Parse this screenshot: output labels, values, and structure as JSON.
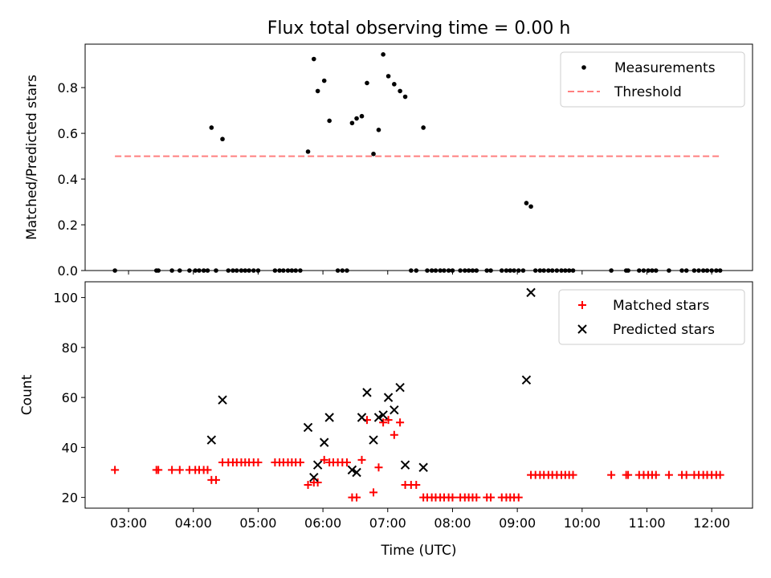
{
  "chart_data": [
    {
      "type": "scatter",
      "title": "Flux total observing time = 0.00 h",
      "xlabel": "",
      "ylabel": "Matched/Predicted stars",
      "xlim": [
        2.33,
        12.63
      ],
      "ylim": [
        0.0,
        0.99
      ],
      "xticks": [
        3,
        4,
        5,
        6,
        7,
        8,
        9,
        10,
        11,
        12
      ],
      "yticks": [
        0.0,
        0.2,
        0.4,
        0.6,
        0.8
      ],
      "ytick_labels": [
        "0.0",
        "0.2",
        "0.4",
        "0.6",
        "0.8"
      ],
      "legend_position": "top-right",
      "series": [
        {
          "name": "Measurements",
          "marker": "dot",
          "color": "#000000",
          "x": [
            2.79,
            3.43,
            3.46,
            3.67,
            3.79,
            3.94,
            4.03,
            4.09,
            4.16,
            4.22,
            4.28,
            4.35,
            4.45,
            4.54,
            4.61,
            4.67,
            4.74,
            4.8,
            4.86,
            4.93,
            5.0,
            5.26,
            5.33,
            5.39,
            5.46,
            5.52,
            5.58,
            5.65,
            5.77,
            5.86,
            5.92,
            6.02,
            6.1,
            6.23,
            6.3,
            6.37,
            6.45,
            6.52,
            6.6,
            6.68,
            6.78,
            6.86,
            6.93,
            7.01,
            7.1,
            7.19,
            7.27,
            7.36,
            7.44,
            7.55,
            7.61,
            7.68,
            7.74,
            7.81,
            7.87,
            7.94,
            8.0,
            8.12,
            8.19,
            8.25,
            8.31,
            8.37,
            8.53,
            8.59,
            8.76,
            8.83,
            8.89,
            8.95,
            9.02,
            9.09,
            9.14,
            9.21,
            9.28,
            9.35,
            9.41,
            9.48,
            9.54,
            9.61,
            9.68,
            9.74,
            9.8,
            9.86,
            10.45,
            10.68,
            10.71,
            10.88,
            10.95,
            11.02,
            11.08,
            11.14,
            11.34,
            11.54,
            11.61,
            11.73,
            11.8,
            11.87,
            11.93,
            12.0,
            12.07,
            12.13
          ],
          "y": [
            0,
            0,
            0,
            0,
            0,
            0,
            0,
            0,
            0,
            0,
            0.625,
            0,
            0.575,
            0,
            0,
            0,
            0,
            0,
            0,
            0,
            0,
            0,
            0,
            0,
            0,
            0,
            0,
            0,
            0.52,
            0.925,
            0.785,
            0.83,
            0.655,
            0,
            0,
            0,
            0.645,
            0.665,
            0.675,
            0.82,
            0.51,
            0.615,
            0.945,
            0.85,
            0.815,
            0.785,
            0.76,
            0,
            0,
            0.625,
            0,
            0,
            0,
            0,
            0,
            0,
            0,
            0,
            0,
            0,
            0,
            0,
            0,
            0,
            0,
            0,
            0,
            0,
            0,
            0,
            0.295,
            0.28,
            0,
            0,
            0,
            0,
            0,
            0,
            0,
            0,
            0,
            0,
            0,
            0,
            0,
            0,
            0,
            0,
            0,
            0,
            0,
            0,
            0,
            0,
            0,
            0,
            0,
            0,
            0,
            0
          ]
        },
        {
          "name": "Threshold",
          "marker": "dashed-line",
          "color": "#ff7f7f",
          "x": [
            2.79,
            12.13
          ],
          "y": [
            0.5,
            0.5
          ]
        }
      ]
    },
    {
      "type": "scatter",
      "title": "",
      "xlabel": "Time (UTC)",
      "ylabel": "Count",
      "xlim": [
        2.33,
        12.63
      ],
      "ylim": [
        15.7,
        106.3
      ],
      "xticks": [
        3,
        4,
        5,
        6,
        7,
        8,
        9,
        10,
        11,
        12
      ],
      "xtick_labels": [
        "03:00",
        "04:00",
        "05:00",
        "06:00",
        "07:00",
        "08:00",
        "09:00",
        "10:00",
        "11:00",
        "12:00"
      ],
      "yticks": [
        20,
        40,
        60,
        80,
        100
      ],
      "ytick_labels": [
        "20",
        "40",
        "60",
        "80",
        "100"
      ],
      "legend_position": "top-right",
      "series": [
        {
          "name": "Matched stars",
          "marker": "plus",
          "color": "#ff0000",
          "x": [
            2.79,
            3.43,
            3.46,
            3.67,
            3.79,
            3.94,
            4.03,
            4.09,
            4.16,
            4.22,
            4.28,
            4.35,
            4.45,
            4.54,
            4.61,
            4.67,
            4.74,
            4.8,
            4.86,
            4.93,
            5.0,
            5.26,
            5.33,
            5.39,
            5.46,
            5.52,
            5.58,
            5.65,
            5.77,
            5.86,
            5.92,
            6.02,
            6.1,
            6.16,
            6.23,
            6.3,
            6.37,
            6.45,
            6.52,
            6.6,
            6.68,
            6.78,
            6.86,
            6.93,
            7.01,
            7.1,
            7.19,
            7.27,
            7.36,
            7.44,
            7.55,
            7.61,
            7.68,
            7.74,
            7.81,
            7.87,
            7.94,
            8.0,
            8.12,
            8.19,
            8.25,
            8.31,
            8.37,
            8.53,
            8.59,
            8.76,
            8.83,
            8.89,
            8.95,
            9.02,
            9.21,
            9.28,
            9.35,
            9.41,
            9.48,
            9.54,
            9.61,
            9.68,
            9.74,
            9.8,
            9.86,
            10.45,
            10.68,
            10.71,
            10.88,
            10.95,
            11.02,
            11.08,
            11.14,
            11.34,
            11.54,
            11.61,
            11.73,
            11.8,
            11.87,
            11.93,
            12.0,
            12.07,
            12.13
          ],
          "y": [
            31,
            31,
            31,
            31,
            31,
            31,
            31,
            31,
            31,
            31,
            27,
            27,
            34,
            34,
            34,
            34,
            34,
            34,
            34,
            34,
            34,
            34,
            34,
            34,
            34,
            34,
            34,
            34,
            25,
            26,
            26,
            35,
            34,
            34,
            34,
            34,
            34,
            20,
            20,
            35,
            51,
            22,
            32,
            50,
            51,
            45,
            50,
            25,
            25,
            25,
            20,
            20,
            20,
            20,
            20,
            20,
            20,
            20,
            20,
            20,
            20,
            20,
            20,
            20,
            20,
            20,
            20,
            20,
            20,
            20,
            29,
            29,
            29,
            29,
            29,
            29,
            29,
            29,
            29,
            29,
            29,
            29,
            29,
            29,
            29,
            29,
            29,
            29,
            29,
            29,
            29,
            29,
            29,
            29,
            29,
            29,
            29,
            29,
            29
          ]
        },
        {
          "name": "Predicted stars",
          "marker": "x",
          "color": "#000000",
          "x": [
            4.28,
            4.45,
            5.77,
            5.86,
            5.92,
            6.02,
            6.1,
            6.45,
            6.52,
            6.6,
            6.68,
            6.78,
            6.86,
            6.93,
            7.01,
            7.1,
            7.19,
            7.27,
            7.55,
            9.14,
            9.21
          ],
          "y": [
            43,
            59,
            48,
            28,
            33,
            42,
            52,
            31,
            30,
            52,
            62,
            43,
            52,
            53,
            60,
            55,
            64,
            33,
            32,
            67,
            102
          ]
        }
      ]
    }
  ]
}
